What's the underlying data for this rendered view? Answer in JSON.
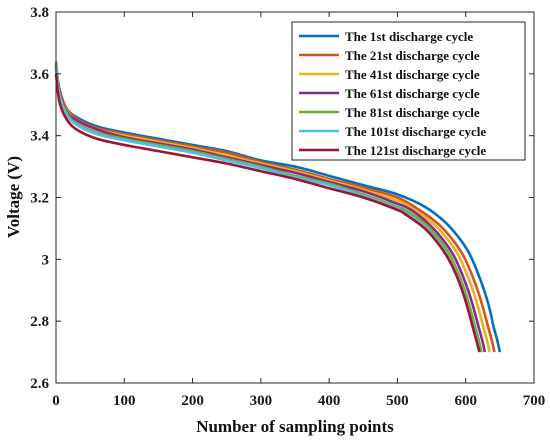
{
  "chart_data": {
    "type": "line",
    "xlabel": "Number of sampling points",
    "ylabel": "Voltage (V)",
    "xlim": [
      0,
      700
    ],
    "ylim": [
      2.6,
      3.8
    ],
    "x_ticks": [
      0,
      100,
      200,
      300,
      400,
      500,
      600,
      700
    ],
    "x_tick_labels": [
      "0",
      "100",
      "200",
      "300",
      "400",
      "500",
      "600",
      "700"
    ],
    "y_ticks": [
      2.6,
      2.8,
      3.0,
      3.2,
      3.4,
      3.6,
      3.8
    ],
    "y_tick_labels": [
      "2.6",
      "2.8",
      "3",
      "3.2",
      "3.4",
      "3.6",
      "3.8"
    ],
    "grid": false,
    "legend_position": "top-right",
    "series": [
      {
        "name": "The 1st discharge cycle",
        "color": "#0072bd",
        "points": [
          [
            0,
            3.62
          ],
          [
            5,
            3.55
          ],
          [
            15,
            3.49
          ],
          [
            30,
            3.46
          ],
          [
            60,
            3.43
          ],
          [
            100,
            3.41
          ],
          [
            150,
            3.39
          ],
          [
            200,
            3.37
          ],
          [
            250,
            3.35
          ],
          [
            300,
            3.32
          ],
          [
            350,
            3.3
          ],
          [
            400,
            3.27
          ],
          [
            450,
            3.24
          ],
          [
            500,
            3.21
          ],
          [
            540,
            3.17
          ],
          [
            570,
            3.12
          ],
          [
            590,
            3.07
          ],
          [
            605,
            3.02
          ],
          [
            617,
            2.96
          ],
          [
            627,
            2.9
          ],
          [
            635,
            2.84
          ],
          [
            641,
            2.78
          ],
          [
            646,
            2.74
          ],
          [
            650,
            2.7
          ]
        ]
      },
      {
        "name": "The 21st discharge cycle",
        "color": "#d95319",
        "points": [
          [
            0,
            3.62
          ],
          [
            5,
            3.55
          ],
          [
            15,
            3.49
          ],
          [
            30,
            3.455
          ],
          [
            60,
            3.425
          ],
          [
            100,
            3.405
          ],
          [
            150,
            3.385
          ],
          [
            200,
            3.365
          ],
          [
            250,
            3.345
          ],
          [
            300,
            3.315
          ],
          [
            350,
            3.29
          ],
          [
            400,
            3.26
          ],
          [
            450,
            3.232
          ],
          [
            500,
            3.2
          ],
          [
            532,
            3.16
          ],
          [
            562,
            3.11
          ],
          [
            582,
            3.06
          ],
          [
            597,
            3.01
          ],
          [
            609,
            2.95
          ],
          [
            619,
            2.89
          ],
          [
            627,
            2.83
          ],
          [
            633,
            2.78
          ],
          [
            638,
            2.74
          ],
          [
            642,
            2.7
          ]
        ]
      },
      {
        "name": "The 41st discharge cycle",
        "color": "#edb120",
        "points": [
          [
            0,
            3.62
          ],
          [
            5,
            3.55
          ],
          [
            15,
            3.485
          ],
          [
            30,
            3.45
          ],
          [
            60,
            3.42
          ],
          [
            100,
            3.4
          ],
          [
            150,
            3.38
          ],
          [
            200,
            3.36
          ],
          [
            250,
            3.335
          ],
          [
            300,
            3.31
          ],
          [
            350,
            3.285
          ],
          [
            400,
            3.255
          ],
          [
            450,
            3.225
          ],
          [
            500,
            3.19
          ],
          [
            525,
            3.16
          ],
          [
            555,
            3.11
          ],
          [
            575,
            3.06
          ],
          [
            590,
            3.01
          ],
          [
            602,
            2.95
          ],
          [
            612,
            2.89
          ],
          [
            620,
            2.83
          ],
          [
            626,
            2.78
          ],
          [
            631,
            2.74
          ],
          [
            635,
            2.7
          ]
        ]
      },
      {
        "name": "The 61st discharge cycle",
        "color": "#7e2f8e",
        "points": [
          [
            0,
            3.63
          ],
          [
            5,
            3.55
          ],
          [
            15,
            3.48
          ],
          [
            30,
            3.45
          ],
          [
            60,
            3.42
          ],
          [
            100,
            3.395
          ],
          [
            150,
            3.375
          ],
          [
            200,
            3.355
          ],
          [
            250,
            3.33
          ],
          [
            300,
            3.305
          ],
          [
            350,
            3.28
          ],
          [
            400,
            3.25
          ],
          [
            450,
            3.22
          ],
          [
            500,
            3.18
          ],
          [
            520,
            3.16
          ],
          [
            548,
            3.11
          ],
          [
            568,
            3.06
          ],
          [
            583,
            3.01
          ],
          [
            595,
            2.95
          ],
          [
            605,
            2.89
          ],
          [
            613,
            2.83
          ],
          [
            619,
            2.78
          ],
          [
            624,
            2.74
          ],
          [
            628,
            2.7
          ]
        ]
      },
      {
        "name": "The 81st discharge cycle",
        "color": "#77ac30",
        "points": [
          [
            0,
            3.64
          ],
          [
            5,
            3.54
          ],
          [
            15,
            3.475
          ],
          [
            30,
            3.44
          ],
          [
            60,
            3.41
          ],
          [
            100,
            3.39
          ],
          [
            150,
            3.37
          ],
          [
            200,
            3.35
          ],
          [
            250,
            3.325
          ],
          [
            300,
            3.3
          ],
          [
            350,
            3.27
          ],
          [
            400,
            3.245
          ],
          [
            450,
            3.21
          ],
          [
            500,
            3.17
          ],
          [
            515,
            3.155
          ],
          [
            543,
            3.11
          ],
          [
            563,
            3.06
          ],
          [
            578,
            3.01
          ],
          [
            590,
            2.95
          ],
          [
            600,
            2.89
          ],
          [
            608,
            2.83
          ],
          [
            614,
            2.78
          ],
          [
            619,
            2.74
          ],
          [
            623,
            2.7
          ]
        ]
      },
      {
        "name": "The 101st discharge cycle",
        "color": "#4dbeee",
        "points": [
          [
            0,
            3.62
          ],
          [
            5,
            3.53
          ],
          [
            15,
            3.47
          ],
          [
            30,
            3.435
          ],
          [
            60,
            3.405
          ],
          [
            100,
            3.385
          ],
          [
            150,
            3.365
          ],
          [
            200,
            3.345
          ],
          [
            250,
            3.32
          ],
          [
            300,
            3.295
          ],
          [
            350,
            3.265
          ],
          [
            400,
            3.24
          ],
          [
            450,
            3.205
          ],
          [
            500,
            3.165
          ],
          [
            512,
            3.15
          ],
          [
            540,
            3.105
          ],
          [
            560,
            3.055
          ],
          [
            575,
            3.005
          ],
          [
            587,
            2.95
          ],
          [
            597,
            2.89
          ],
          [
            605,
            2.83
          ],
          [
            611,
            2.78
          ],
          [
            616,
            2.74
          ],
          [
            620,
            2.7
          ]
        ]
      },
      {
        "name": "The 121st discharge cycle",
        "color": "#a2142f",
        "points": [
          [
            0,
            3.6
          ],
          [
            5,
            3.51
          ],
          [
            15,
            3.455
          ],
          [
            30,
            3.42
          ],
          [
            60,
            3.39
          ],
          [
            100,
            3.37
          ],
          [
            150,
            3.35
          ],
          [
            200,
            3.33
          ],
          [
            250,
            3.31
          ],
          [
            300,
            3.285
          ],
          [
            350,
            3.26
          ],
          [
            400,
            3.23
          ],
          [
            450,
            3.2
          ],
          [
            500,
            3.16
          ],
          [
            512,
            3.145
          ],
          [
            540,
            3.1
          ],
          [
            560,
            3.05
          ],
          [
            575,
            3.0
          ],
          [
            587,
            2.945
          ],
          [
            597,
            2.885
          ],
          [
            605,
            2.825
          ],
          [
            611,
            2.775
          ],
          [
            616,
            2.735
          ],
          [
            620,
            2.7
          ]
        ]
      }
    ]
  }
}
